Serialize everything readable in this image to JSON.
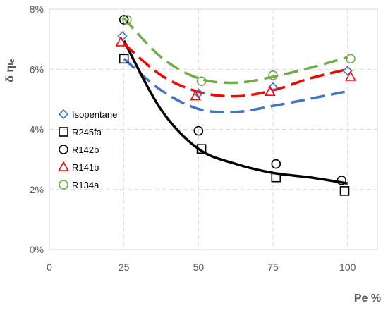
{
  "chart_data": {
    "type": "scatter",
    "title": "",
    "xlabel": "Pe %",
    "ylabel": "δ ηₗₑ",
    "xlim": [
      0,
      110
    ],
    "ylim": [
      0,
      8
    ],
    "x_ticks": [
      "0",
      "25",
      "50",
      "75",
      "100"
    ],
    "x_tick_values": [
      0,
      25,
      50,
      75,
      100
    ],
    "y_ticks": [
      "0%",
      "2%",
      "4%",
      "6%",
      "8%"
    ],
    "y_tick_values": [
      0,
      2,
      4,
      6,
      8
    ],
    "grid": true,
    "legend_position": "left",
    "series": [
      {
        "name": "Isopentane",
        "marker": "diamond",
        "color": "#4472C4",
        "x": [
          24.5,
          50,
          75,
          100
        ],
        "y": [
          7.1,
          5.2,
          5.4,
          5.95
        ],
        "trend": {
          "dash": "long",
          "x": [
            25,
            37.5,
            50,
            62.5,
            75,
            87.5,
            100
          ],
          "y": [
            6.35,
            5.3,
            4.68,
            4.58,
            4.78,
            5.02,
            5.27
          ]
        }
      },
      {
        "name": "R245fa",
        "marker": "square",
        "color": "#000000",
        "x": [
          25,
          51,
          76,
          99
        ],
        "y": [
          6.35,
          3.35,
          2.4,
          1.95
        ],
        "trend": null
      },
      {
        "name": "R142b",
        "marker": "circle",
        "color": "#000000",
        "x": [
          25,
          50,
          76,
          98
        ],
        "y": [
          7.65,
          3.95,
          2.85,
          2.3
        ],
        "trend": {
          "dash": "solid",
          "x": [
            25,
            37.5,
            50,
            62.5,
            75,
            87.5,
            100
          ],
          "y": [
            6.95,
            4.65,
            3.35,
            2.85,
            2.55,
            2.4,
            2.2
          ]
        }
      },
      {
        "name": "R141b",
        "marker": "triangle",
        "color": "#FF0000",
        "x": [
          24,
          49,
          74,
          101
        ],
        "y": [
          6.9,
          5.1,
          5.25,
          5.75
        ],
        "trend": {
          "dash": "long",
          "x": [
            25,
            37.5,
            50,
            62.5,
            75,
            87.5,
            100
          ],
          "y": [
            6.85,
            5.8,
            5.25,
            5.1,
            5.3,
            5.7,
            6.0
          ]
        }
      },
      {
        "name": "R134a",
        "marker": "circle",
        "color": "#70AD47",
        "x": [
          26,
          51,
          75,
          101
        ],
        "y": [
          7.65,
          5.6,
          5.8,
          6.35
        ],
        "trend": {
          "dash": "long",
          "x": [
            25,
            37.5,
            50,
            62.5,
            75,
            87.5,
            100
          ],
          "y": [
            7.7,
            6.4,
            5.7,
            5.55,
            5.75,
            6.05,
            6.4
          ]
        }
      }
    ]
  }
}
